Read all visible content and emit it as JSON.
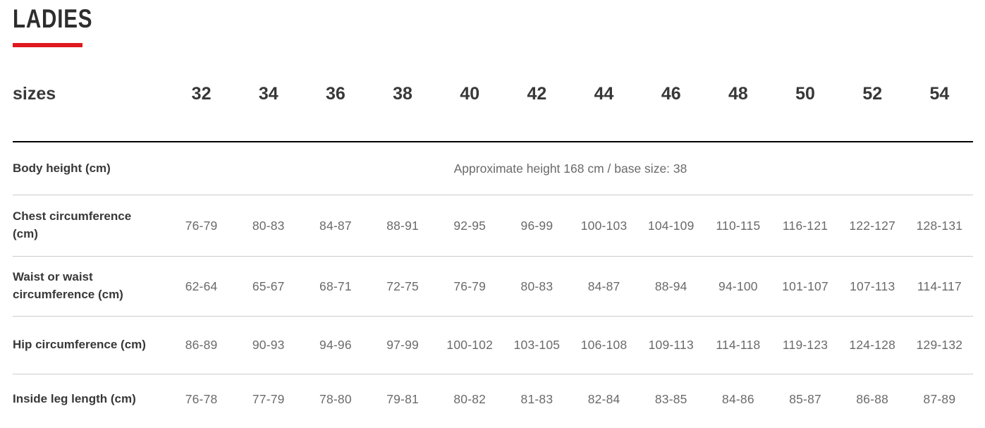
{
  "page": {
    "title": "LADIES"
  },
  "table": {
    "header": {
      "label": "sizes",
      "sizes": [
        "32",
        "34",
        "36",
        "38",
        "40",
        "42",
        "44",
        "46",
        "48",
        "50",
        "52",
        "54"
      ]
    },
    "rows": [
      {
        "label": "Body height (cm)",
        "span_text": "Approximate height 168 cm / base size: 38"
      },
      {
        "label": "Chest circumference (cm)",
        "values": [
          "76-79",
          "80-83",
          "84-87",
          "88-91",
          "92-95",
          "96-99",
          "100-103",
          "104-109",
          "110-115",
          "116-121",
          "122-127",
          "128-131"
        ]
      },
      {
        "label": "Waist or waist circumference (cm)",
        "values": [
          "62-64",
          "65-67",
          "68-71",
          "72-75",
          "76-79",
          "80-83",
          "84-87",
          "88-94",
          "94-100",
          "101-107",
          "107-113",
          "114-117"
        ]
      },
      {
        "label": "Hip circumference (cm)",
        "values": [
          "86-89",
          "90-93",
          "94-96",
          "97-99",
          "100-102",
          "103-105",
          "106-108",
          "109-113",
          "114-118",
          "119-123",
          "124-128",
          "129-132"
        ]
      },
      {
        "label": "Inside leg length (cm)",
        "values": [
          "76-78",
          "77-79",
          "78-80",
          "79-81",
          "80-82",
          "81-83",
          "82-84",
          "83-85",
          "84-86",
          "85-87",
          "86-88",
          "87-89"
        ]
      }
    ]
  },
  "colors": {
    "accent_red": "#e0191e",
    "heading_text": "#2d2d2d",
    "label_text": "#383838",
    "value_text": "#6a6a6a",
    "divider": "#cccccc",
    "header_rule": "#000000"
  }
}
